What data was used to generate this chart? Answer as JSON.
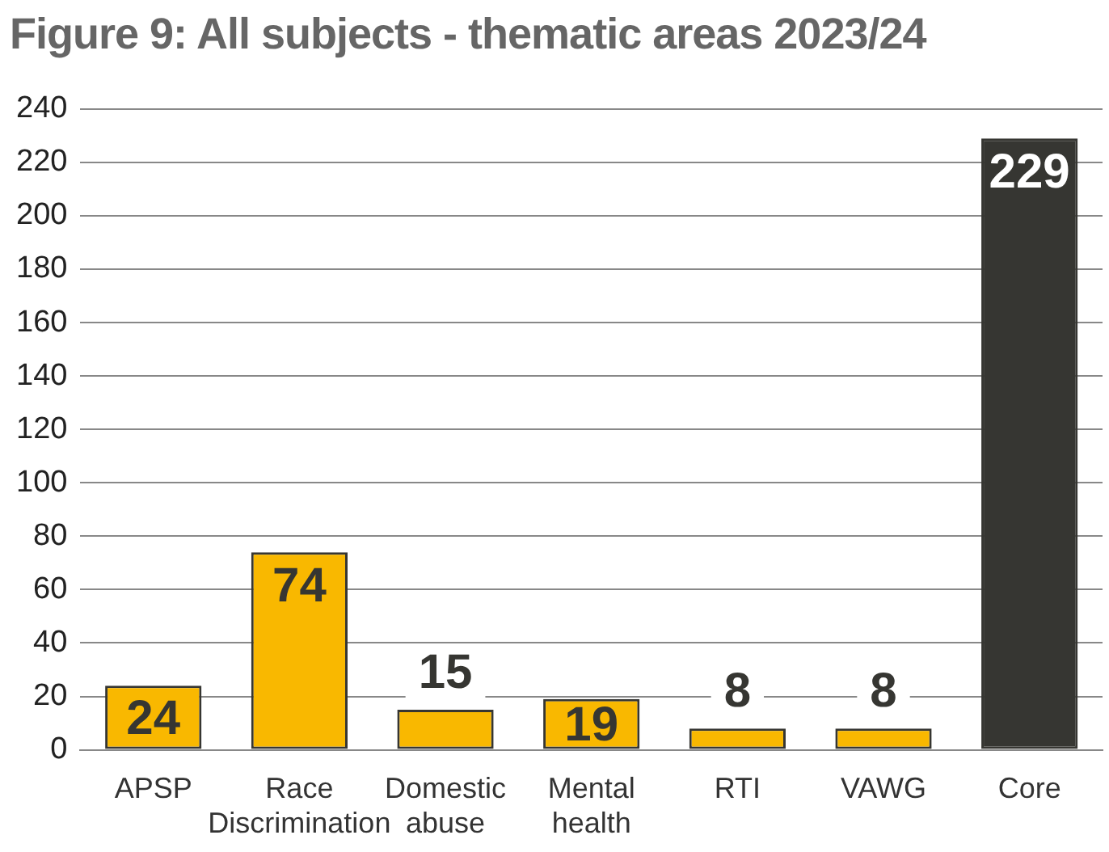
{
  "chart_data": {
    "type": "bar",
    "title": "Figure 9: All subjects - thematic areas 2023/24",
    "categories": [
      "APSP",
      "Race Discrimination",
      "Domestic abuse",
      "Mental health",
      "RTI",
      "VAWG",
      "Core"
    ],
    "values": [
      24,
      74,
      15,
      19,
      8,
      8,
      229
    ],
    "colors": [
      "#f9b800",
      "#f9b800",
      "#f9b800",
      "#f9b800",
      "#f9b800",
      "#f9b800",
      "#363632"
    ],
    "ylim": [
      0,
      240
    ],
    "yticks": [
      0,
      20,
      40,
      60,
      80,
      100,
      120,
      140,
      160,
      180,
      200,
      220,
      240
    ],
    "grid": "y",
    "data_labels": true,
    "legend": false
  }
}
